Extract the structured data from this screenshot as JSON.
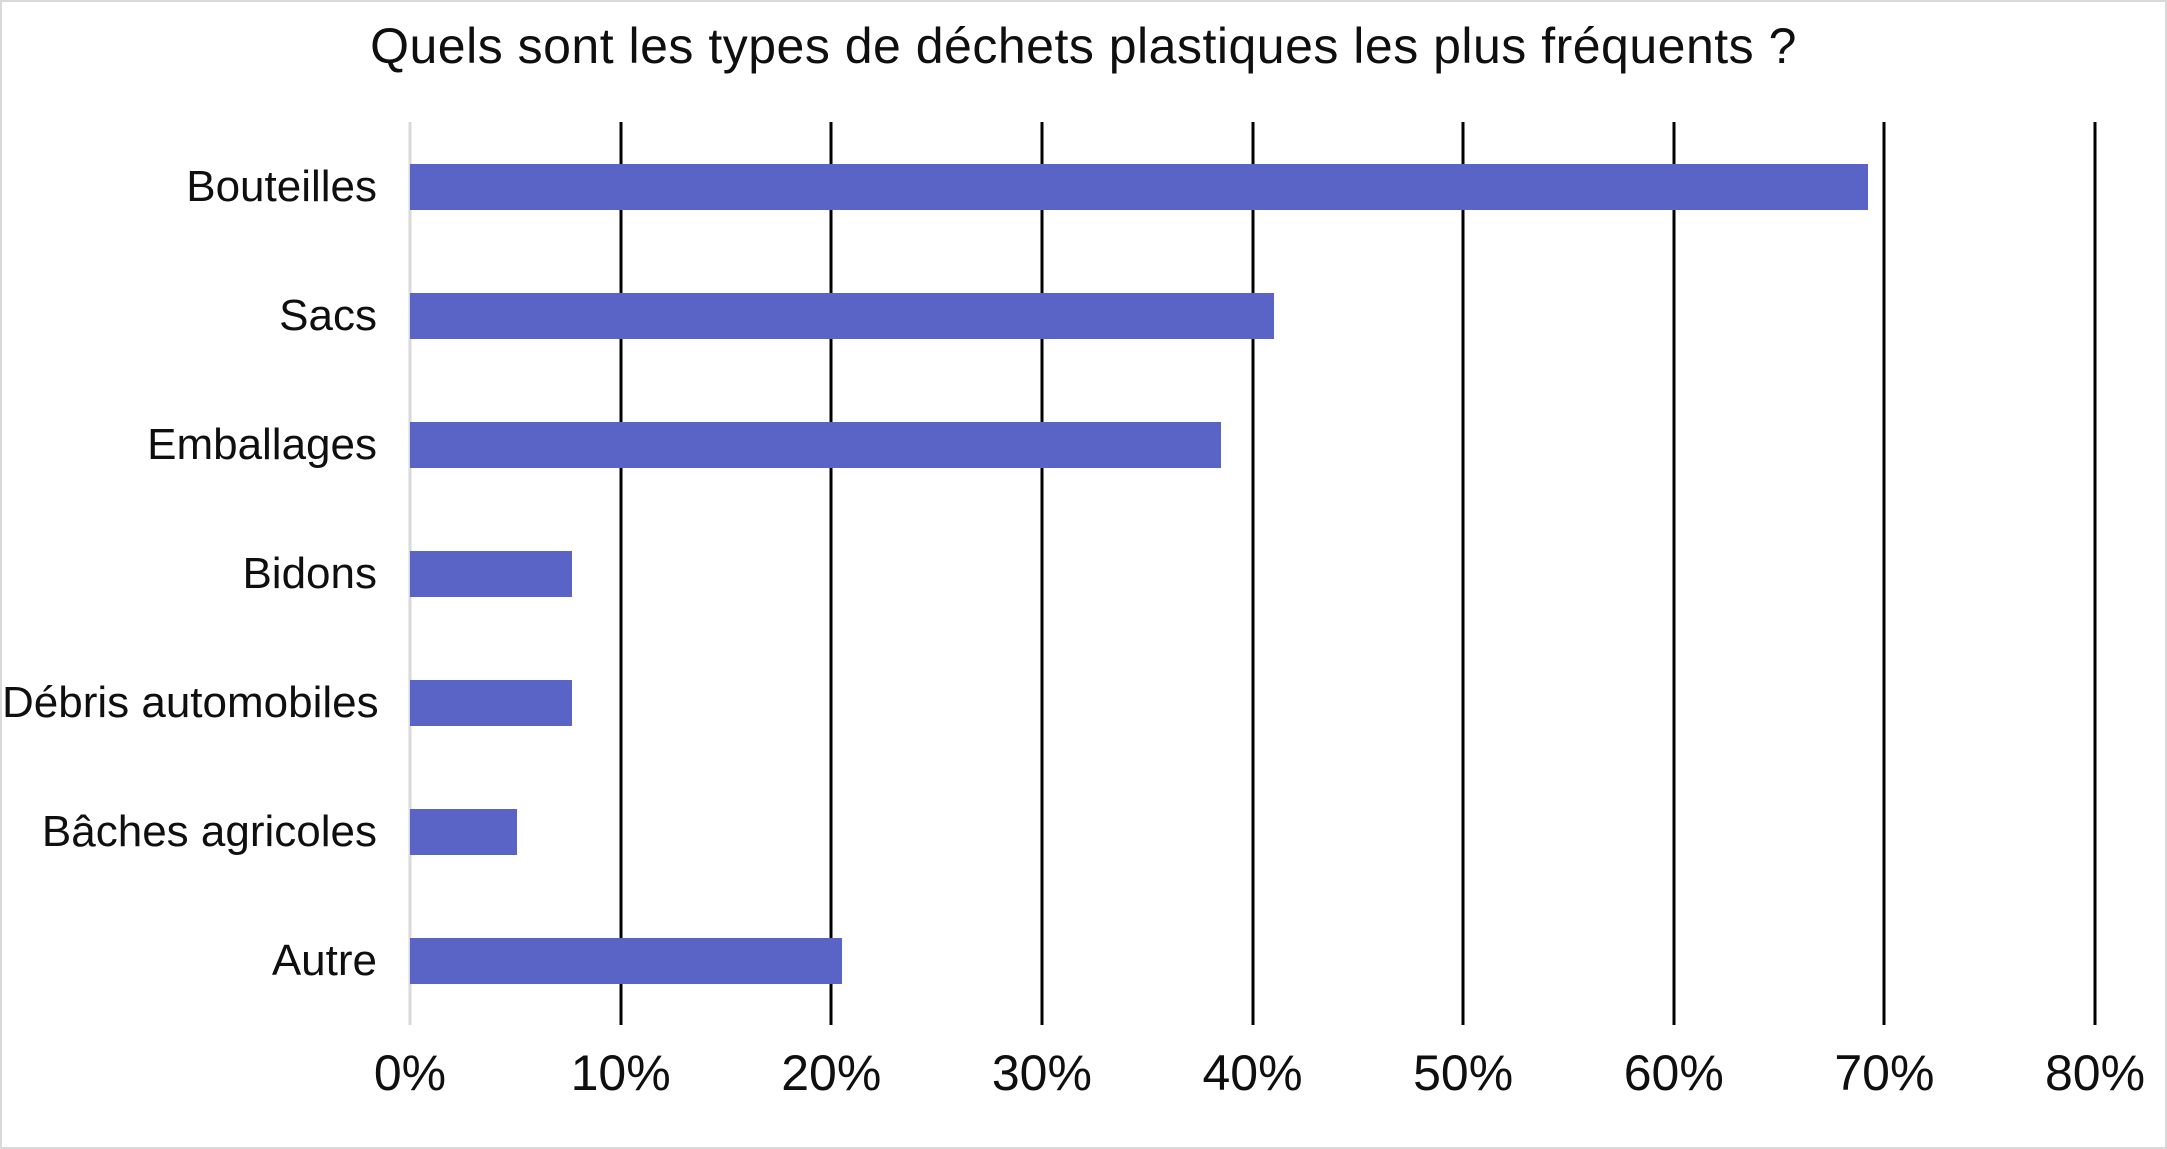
{
  "chart_data": {
    "type": "bar",
    "orientation": "horizontal",
    "title": "Quels sont les types de déchets plastiques les plus fréquents ?",
    "categories": [
      "Bouteilles",
      "Sacs",
      "Emballages",
      "Bidons",
      "Débris automobiles",
      "Bâches agricoles",
      "Autre"
    ],
    "values": [
      69.2,
      41.0,
      38.5,
      7.7,
      7.7,
      5.1,
      20.5
    ],
    "unit": "%",
    "xlabel": "",
    "ylabel": "",
    "xlim": [
      0,
      80
    ],
    "x_tick_values": [
      0,
      10,
      20,
      30,
      40,
      50,
      60,
      70,
      80
    ],
    "x_tick_labels": [
      "0%",
      "10%",
      "20%",
      "30%",
      "40%",
      "50%",
      "60%",
      "70%",
      "80%"
    ],
    "grid": "vertical",
    "legend": "none",
    "colors": {
      "bar": "#5a63c6",
      "gridline": "#000000",
      "axis_line": "#d9d9d9",
      "text": "#0f0f0f",
      "frame_border": "#d9d9d9",
      "background": "#ffffff"
    }
  }
}
